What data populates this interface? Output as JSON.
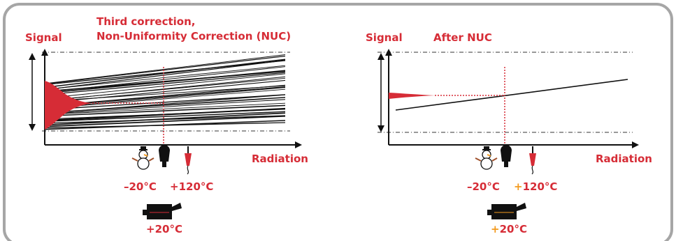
{
  "colors": {
    "accent": "#d62c36",
    "frame": "#a6a6a6",
    "line": "#111111",
    "orange": "#f39a1e"
  },
  "left_panel": {
    "signal_label": "Signal",
    "title_line1": "Third correction,",
    "title_line2": "Non-Uniformity Correction (NUC)",
    "radiation_label": "Radiation",
    "cold_temp": "–20°C",
    "hot_temp": "+120°C",
    "camera_temp": "+20°C"
  },
  "right_panel": {
    "signal_label": "Signal",
    "title": "After NUC",
    "radiation_label": "Radiation",
    "cold_temp": "–20°C",
    "hot_temp_sign": "+",
    "hot_temp_value": "120°C",
    "camera_temp_sign": "+",
    "camera_temp_value": "20°C"
  },
  "icons": [
    "snowman-icon",
    "blackbody-icon",
    "soldering-iron-icon",
    "camera-icon"
  ]
}
